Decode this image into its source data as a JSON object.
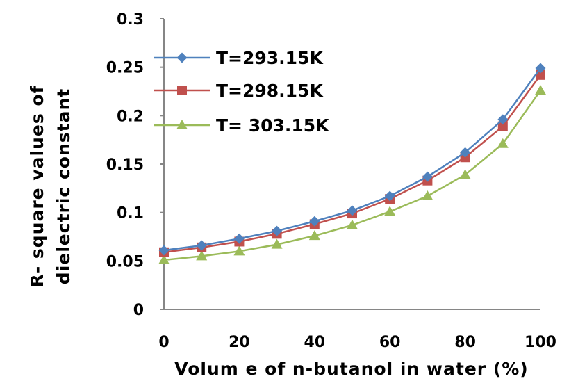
{
  "chart_data": {
    "type": "line",
    "xlabel": "Volum e of n-butanol in water (%)",
    "ylabel_lines": [
      "R- square values of",
      "dielectric constant"
    ],
    "x": [
      0,
      10,
      20,
      30,
      40,
      50,
      60,
      70,
      80,
      90,
      100
    ],
    "xticks": [
      "0",
      "20",
      "40",
      "60",
      "80",
      "100"
    ],
    "yticks": [
      "0",
      "0.05",
      "0.1",
      "0.15",
      "0.2",
      "0.25",
      "0.3"
    ],
    "xlim": [
      0,
      100
    ],
    "ylim": [
      0,
      0.3
    ],
    "grid": false,
    "legend_position": "top-left",
    "series": [
      {
        "name": "T=293.15K",
        "color": "#4f81bd",
        "marker": "diamond",
        "values": [
          0.061,
          0.066,
          0.073,
          0.081,
          0.091,
          0.102,
          0.117,
          0.137,
          0.162,
          0.196,
          0.249
        ]
      },
      {
        "name": "T=298.15K",
        "color": "#c0504d",
        "marker": "square",
        "values": [
          0.059,
          0.064,
          0.07,
          0.078,
          0.088,
          0.099,
          0.114,
          0.133,
          0.157,
          0.189,
          0.242
        ]
      },
      {
        "name": "T= 303.15K",
        "color": "#9bbb59",
        "marker": "triangle",
        "values": [
          0.051,
          0.055,
          0.06,
          0.067,
          0.076,
          0.087,
          0.101,
          0.117,
          0.139,
          0.171,
          0.226
        ]
      }
    ]
  }
}
